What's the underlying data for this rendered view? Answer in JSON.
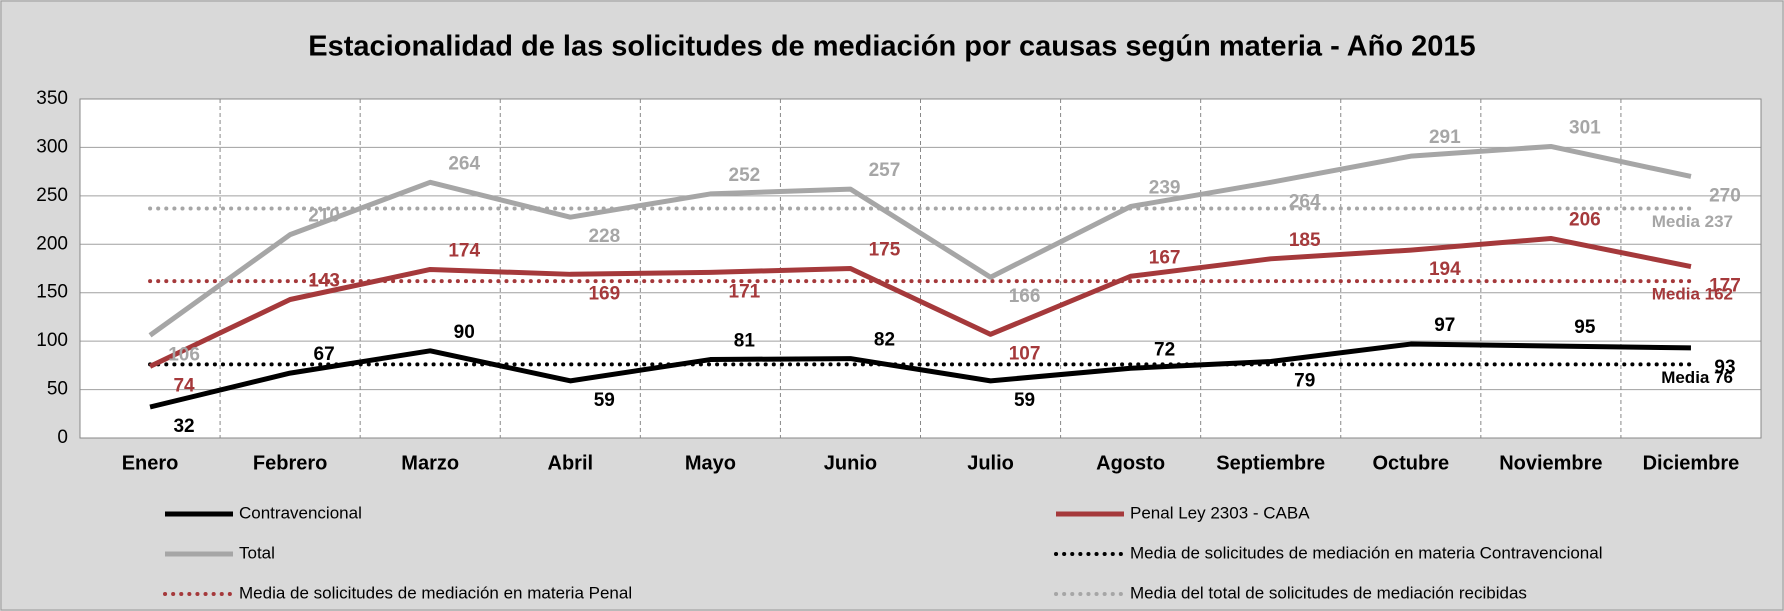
{
  "chart_data": {
    "type": "line",
    "title": "Estacionalidad de las solicitudes de mediación por causas según materia - Año 2015",
    "categories": [
      "Enero",
      "Febrero",
      "Marzo",
      "Abril",
      "Mayo",
      "Junio",
      "Julio",
      "Agosto",
      "Septiembre",
      "Octubre",
      "Noviembre",
      "Diciembre"
    ],
    "series": [
      {
        "name": "Contravencional",
        "color": "#000000",
        "values": [
          32,
          67,
          90,
          59,
          81,
          82,
          59,
          72,
          79,
          97,
          95,
          93
        ]
      },
      {
        "name": "Penal Ley 2303 - CABA",
        "color": "#a5393b",
        "values": [
          74,
          143,
          174,
          169,
          171,
          175,
          107,
          167,
          185,
          194,
          206,
          177
        ]
      },
      {
        "name": "Total",
        "color": "#a6a6a6",
        "values": [
          106,
          210,
          264,
          228,
          252,
          257,
          166,
          239,
          264,
          291,
          301,
          270
        ]
      }
    ],
    "mean_lines": [
      {
        "name": "Media de solicitudes de mediación en materia Contravencional",
        "color": "#000000",
        "value": 76,
        "value_label": "Media 76"
      },
      {
        "name": "Media de solicitudes de mediación en materia Penal",
        "color": "#a5393b",
        "value": 162,
        "value_label": "Media 162"
      },
      {
        "name": "Media del total de solicitudes de mediación recibidas",
        "color": "#a6a6a6",
        "value": 237,
        "value_label": "Media 237"
      }
    ],
    "ylim": [
      0,
      350
    ],
    "yticks": [
      0,
      50,
      100,
      150,
      200,
      250,
      300,
      350
    ],
    "grid": true
  }
}
